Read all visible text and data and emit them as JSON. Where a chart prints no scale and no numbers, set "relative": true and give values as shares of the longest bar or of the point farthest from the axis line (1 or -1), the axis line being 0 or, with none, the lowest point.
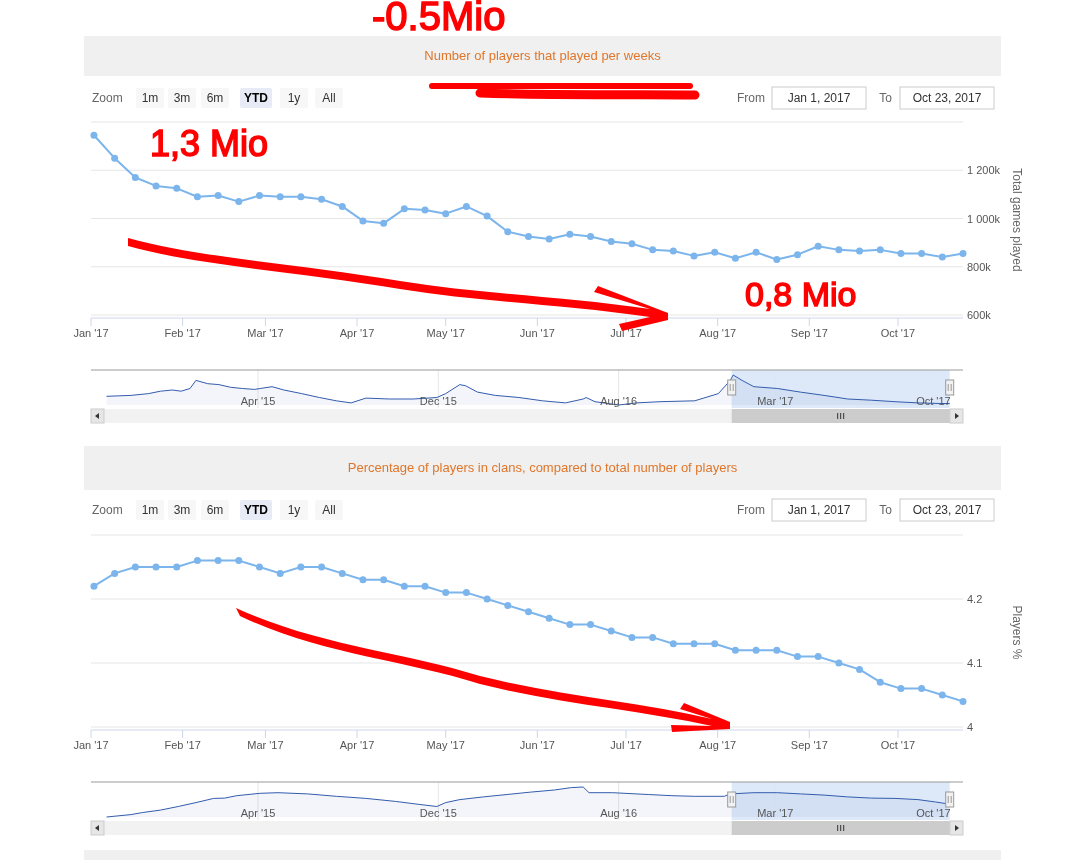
{
  "chart_data": [
    {
      "type": "line",
      "title": "Number of players that played per weeks",
      "ylabel": "Total games played",
      "x": [
        "2017-01-02",
        "2017-01-09",
        "2017-01-16",
        "2017-01-23",
        "2017-01-30",
        "2017-02-06",
        "2017-02-13",
        "2017-02-20",
        "2017-02-27",
        "2017-03-06",
        "2017-03-13",
        "2017-03-20",
        "2017-03-27",
        "2017-04-03",
        "2017-04-10",
        "2017-04-17",
        "2017-04-24",
        "2017-05-01",
        "2017-05-08",
        "2017-05-15",
        "2017-05-22",
        "2017-05-29",
        "2017-06-05",
        "2017-06-12",
        "2017-06-19",
        "2017-06-26",
        "2017-07-03",
        "2017-07-10",
        "2017-07-17",
        "2017-07-24",
        "2017-07-31",
        "2017-08-07",
        "2017-08-14",
        "2017-08-21",
        "2017-08-28",
        "2017-09-04",
        "2017-09-11",
        "2017-09-18",
        "2017-09-25",
        "2017-10-02",
        "2017-10-09",
        "2017-10-16",
        "2017-10-23"
      ],
      "series": [
        {
          "color": "#7cb5ec",
          "values": [
            1345000,
            1250000,
            1170000,
            1135000,
            1125000,
            1090000,
            1095000,
            1070000,
            1095000,
            1090000,
            1090000,
            1080000,
            1050000,
            990000,
            980000,
            1040000,
            1035000,
            1020000,
            1050000,
            1010000,
            945000,
            925000,
            915000,
            935000,
            925000,
            905000,
            895000,
            870000,
            865000,
            845000,
            860000,
            835000,
            860000,
            830000,
            850000,
            885000,
            870000,
            865000,
            870000,
            855000,
            855000,
            840000,
            855000
          ]
        }
      ],
      "xlim": [
        "2017-01-01",
        "2017-10-23"
      ],
      "xticks": [
        {
          "value": "2017-01-01",
          "label": "Jan '17"
        },
        {
          "value": "2017-02-01",
          "label": "Feb '17"
        },
        {
          "value": "2017-03-01",
          "label": "Mar '17"
        },
        {
          "value": "2017-04-01",
          "label": "Apr '17"
        },
        {
          "value": "2017-05-01",
          "label": "May '17"
        },
        {
          "value": "2017-06-01",
          "label": "Jun '17"
        },
        {
          "value": "2017-07-01",
          "label": "Jul '17"
        },
        {
          "value": "2017-08-01",
          "label": "Aug '17"
        },
        {
          "value": "2017-09-01",
          "label": "Sep '17"
        },
        {
          "value": "2017-10-01",
          "label": "Oct '17"
        }
      ],
      "ylim": [
        600000,
        1400000
      ],
      "yticks": [
        {
          "value": 600000,
          "label": "600k"
        },
        {
          "value": 800000,
          "label": "800k"
        },
        {
          "value": 1000000,
          "label": "1 000k"
        },
        {
          "value": 1200000,
          "label": "1 200k"
        },
        {
          "value": 1400000,
          "label": null
        }
      ],
      "grid": "y",
      "marker": "circle",
      "annotations": [
        "Zoom",
        "1m",
        "3m",
        "6m",
        "YTD",
        "1y",
        "All",
        "From",
        "Jan 1, 2017",
        "To",
        "Oct 23, 2017",
        "-0.5Mio",
        "1,3 Mio",
        "0,8 Mio"
      ]
    },
    {
      "type": "area",
      "relative": true,
      "x": [
        "2014-09-08",
        "2014-10-11",
        "2014-11-04",
        "2014-11-20",
        "2014-12-06",
        "2014-12-18",
        "2014-12-30",
        "2015-01-07",
        "2015-01-23",
        "2015-02-07",
        "2015-02-23",
        "2015-03-11",
        "2015-03-27",
        "2015-04-04",
        "2015-04-20",
        "2015-05-06",
        "2015-05-30",
        "2015-06-23",
        "2015-07-16",
        "2015-08-05",
        "2015-08-25",
        "2015-09-26",
        "2015-10-28",
        "2015-11-29",
        "2015-12-11",
        "2015-12-30",
        "2016-01-07",
        "2016-01-23",
        "2016-02-16",
        "2016-03-19",
        "2016-04-20",
        "2016-05-21",
        "2016-06-14",
        "2016-06-18",
        "2016-06-30",
        "2016-08-01",
        "2016-08-25",
        "2016-09-26",
        "2016-11-12",
        "2016-12-14",
        "2016-12-30",
        "2017-01-03",
        "2017-01-15",
        "2017-01-31",
        "2017-03-04",
        "2017-04-04",
        "2017-05-06",
        "2017-06-07",
        "2017-07-09",
        "2017-08-10",
        "2017-09-10",
        "2017-10-12",
        "2017-10-23"
      ],
      "series": [
        {
          "color": "#335cad",
          "values": [
            0.29,
            0.32,
            0.38,
            0.46,
            0.5,
            0.46,
            0.55,
            0.82,
            0.71,
            0.68,
            0.59,
            0.55,
            0.52,
            0.55,
            0.61,
            0.5,
            0.38,
            0.25,
            0.14,
            0.07,
            0.23,
            0.2,
            0.2,
            0.25,
            0.38,
            0.68,
            0.64,
            0.43,
            0.32,
            0.25,
            0.14,
            0.07,
            0.2,
            0.25,
            0.11,
            0,
            0.07,
            0.11,
            0.14,
            0.38,
            0.82,
            1,
            0.82,
            0.61,
            0.55,
            0.43,
            0.32,
            0.2,
            0.16,
            0.11,
            0.07,
            0.05,
            0.05
          ]
        }
      ],
      "xlim": [
        "2014-08-18",
        "2017-11-10"
      ],
      "xticks": [
        {
          "value": "2015-04-01",
          "label": "Apr '15"
        },
        {
          "value": "2015-12-01",
          "label": "Dec '15"
        },
        {
          "value": "2016-08-01",
          "label": "Aug '16"
        },
        {
          "value": "2017-03-01",
          "label": "Mar '17"
        },
        {
          "value": "2017-10-01",
          "label": "Oct '17"
        }
      ],
      "grid": "x",
      "bands": [
        {
          "axis": "x",
          "from": "2017-01-01",
          "to": "2017-10-23",
          "color": "#d4e3f7"
        }
      ]
    },
    {
      "type": "line",
      "title": "Percentage of players in clans, compared to total number of players",
      "ylabel": "Players %",
      "x": [
        "2017-01-02",
        "2017-01-09",
        "2017-01-16",
        "2017-01-23",
        "2017-01-30",
        "2017-02-06",
        "2017-02-13",
        "2017-02-20",
        "2017-02-27",
        "2017-03-06",
        "2017-03-13",
        "2017-03-20",
        "2017-03-27",
        "2017-04-03",
        "2017-04-10",
        "2017-04-17",
        "2017-04-24",
        "2017-05-01",
        "2017-05-08",
        "2017-05-15",
        "2017-05-22",
        "2017-05-29",
        "2017-06-05",
        "2017-06-12",
        "2017-06-19",
        "2017-06-26",
        "2017-07-03",
        "2017-07-10",
        "2017-07-17",
        "2017-07-24",
        "2017-07-31",
        "2017-08-07",
        "2017-08-14",
        "2017-08-21",
        "2017-08-28",
        "2017-09-04",
        "2017-09-11",
        "2017-09-18",
        "2017-09-25",
        "2017-10-02",
        "2017-10-09",
        "2017-10-16",
        "2017-10-23"
      ],
      "series": [
        {
          "color": "#7cb5ec",
          "values": [
            4.22,
            4.24,
            4.25,
            4.25,
            4.25,
            4.26,
            4.26,
            4.26,
            4.25,
            4.24,
            4.25,
            4.25,
            4.24,
            4.23,
            4.23,
            4.22,
            4.22,
            4.21,
            4.21,
            4.2,
            4.19,
            4.18,
            4.17,
            4.16,
            4.16,
            4.15,
            4.14,
            4.14,
            4.13,
            4.13,
            4.13,
            4.12,
            4.12,
            4.12,
            4.11,
            4.11,
            4.1,
            4.09,
            4.07,
            4.06,
            4.06,
            4.05,
            4.04
          ]
        }
      ],
      "xlim": [
        "2017-01-01",
        "2017-10-23"
      ],
      "xticks": [
        {
          "value": "2017-01-01",
          "label": "Jan '17"
        },
        {
          "value": "2017-02-01",
          "label": "Feb '17"
        },
        {
          "value": "2017-03-01",
          "label": "Mar '17"
        },
        {
          "value": "2017-04-01",
          "label": "Apr '17"
        },
        {
          "value": "2017-05-01",
          "label": "May '17"
        },
        {
          "value": "2017-06-01",
          "label": "Jun '17"
        },
        {
          "value": "2017-07-01",
          "label": "Jul '17"
        },
        {
          "value": "2017-08-01",
          "label": "Aug '17"
        },
        {
          "value": "2017-09-01",
          "label": "Sep '17"
        },
        {
          "value": "2017-10-01",
          "label": "Oct '17"
        }
      ],
      "ylim": [
        4,
        4.3
      ],
      "yticks": [
        4,
        4.1,
        4.2,
        {
          "value": 4.3,
          "label": null
        }
      ],
      "grid": "y",
      "marker": "circle",
      "annotations": [
        "Zoom",
        "1m",
        "3m",
        "6m",
        "YTD",
        "1y",
        "All",
        "From",
        "Jan 1, 2017",
        "To",
        "Oct 23, 2017"
      ]
    },
    {
      "type": "area",
      "relative": true,
      "x": [
        "2014-09-08",
        "2014-10-11",
        "2014-10-27",
        "2014-11-20",
        "2014-12-14",
        "2015-01-07",
        "2015-01-31",
        "2015-02-15",
        "2015-03-03",
        "2015-04-04",
        "2015-04-28",
        "2015-06-07",
        "2015-07-16",
        "2015-08-25",
        "2015-10-04",
        "2015-11-05",
        "2015-11-29",
        "2015-12-11",
        "2015-12-30",
        "2016-01-31",
        "2016-03-03",
        "2016-04-04",
        "2016-05-06",
        "2016-05-29",
        "2016-06-14",
        "2016-06-22",
        "2016-07-24",
        "2016-09-10",
        "2016-10-12",
        "2016-11-12",
        "2016-12-22",
        "2016-12-30",
        "2017-01-31",
        "2017-03-04",
        "2017-04-04",
        "2017-05-06",
        "2017-06-07",
        "2017-07-09",
        "2017-08-10",
        "2017-09-10",
        "2017-10-04",
        "2017-10-20"
      ],
      "series": [
        {
          "color": "#335cad",
          "values": [
            0,
            0.08,
            0.15,
            0.23,
            0.35,
            0.48,
            0.62,
            0.63,
            0.71,
            0.79,
            0.81,
            0.77,
            0.69,
            0.62,
            0.52,
            0.42,
            0.35,
            0.48,
            0.58,
            0.67,
            0.75,
            0.83,
            0.9,
            0.98,
            1,
            0.81,
            0.81,
            0.75,
            0.71,
            0.69,
            0.69,
            0.77,
            0.81,
            0.81,
            0.77,
            0.73,
            0.67,
            0.63,
            0.62,
            0.58,
            0.5,
            0.44
          ]
        }
      ],
      "xlim": [
        "2014-08-18",
        "2017-11-10"
      ],
      "xticks": [
        {
          "value": "2015-04-01",
          "label": "Apr '15"
        },
        {
          "value": "2015-12-01",
          "label": "Dec '15"
        },
        {
          "value": "2016-08-01",
          "label": "Aug '16"
        },
        {
          "value": "2017-03-01",
          "label": "Mar '17"
        },
        {
          "value": "2017-10-01",
          "label": "Oct '17"
        }
      ],
      "grid": "x",
      "bands": [
        {
          "axis": "x",
          "from": "2017-01-01",
          "to": "2017-10-23",
          "color": "#d4e3f7"
        }
      ]
    }
  ]
}
